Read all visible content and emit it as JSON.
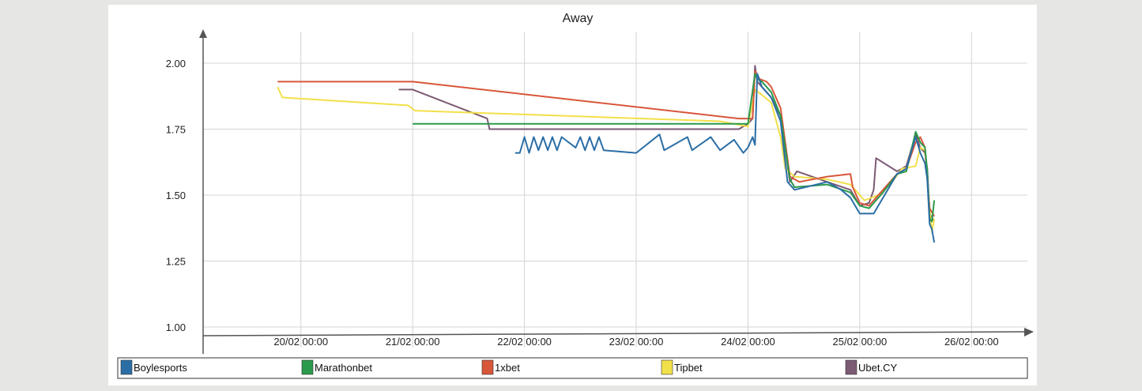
{
  "chart_data": {
    "type": "line",
    "title": "Away",
    "xlabel": "",
    "ylabel": "",
    "ylim": [
      1.0,
      2.05
    ],
    "xlim": [
      "2024-02-19 03:00",
      "2024-02-26 12:00"
    ],
    "grid": true,
    "legend_position": "bottom",
    "y_ticks": [
      "1.00",
      "1.25",
      "1.50",
      "1.75",
      "2.00"
    ],
    "y_tick_values": [
      1.0,
      1.25,
      1.5,
      1.75,
      2.0
    ],
    "x_ticks": [
      "20/02 00:00",
      "21/02 00:00",
      "22/02 00:00",
      "23/02 00:00",
      "24/02 00:00",
      "25/02 00:00",
      "26/02 00:00"
    ],
    "x_tick_values": [
      "2024-02-20 00:00",
      "2024-02-21 00:00",
      "2024-02-22 00:00",
      "2024-02-23 00:00",
      "2024-02-24 00:00",
      "2024-02-25 00:00",
      "2024-02-26 00:00"
    ],
    "series": [
      {
        "name": "Ubet.CY",
        "color": "#7b5a74",
        "points": [
          [
            "2024-02-20 21:00",
            1.9
          ],
          [
            "2024-02-21 00:00",
            1.9
          ],
          [
            "2024-02-21 16:00",
            1.79
          ],
          [
            "2024-02-21 16:30",
            1.75
          ],
          [
            "2024-02-23 22:00",
            1.75
          ],
          [
            "2024-02-24 00:00",
            1.77
          ],
          [
            "2024-02-24 01:00",
            1.79
          ],
          [
            "2024-02-24 01:30",
            1.99
          ],
          [
            "2024-02-24 02:00",
            1.93
          ],
          [
            "2024-02-24 03:30",
            1.9
          ],
          [
            "2024-02-24 05:00",
            1.87
          ],
          [
            "2024-02-24 07:00",
            1.8
          ],
          [
            "2024-02-24 09:00",
            1.55
          ],
          [
            "2024-02-24 10:30",
            1.59
          ],
          [
            "2024-02-24 17:00",
            1.55
          ],
          [
            "2024-02-24 22:00",
            1.52
          ],
          [
            "2024-02-25 00:00",
            1.46
          ],
          [
            "2024-02-25 02:00",
            1.47
          ],
          [
            "2024-02-25 03:00",
            1.52
          ],
          [
            "2024-02-25 03:30",
            1.64
          ],
          [
            "2024-02-25 08:00",
            1.59
          ],
          [
            "2024-02-25 10:00",
            1.61
          ],
          [
            "2024-02-25 12:00",
            1.73
          ],
          [
            "2024-02-25 13:00",
            1.68
          ],
          [
            "2024-02-25 14:00",
            1.66
          ],
          [
            "2024-02-25 14:30",
            1.6
          ],
          [
            "2024-02-25 15:00",
            1.43
          ],
          [
            "2024-02-25 16:00",
            1.4
          ]
        ]
      },
      {
        "name": "Tipbet",
        "color": "#f2e04a",
        "points": [
          [
            "2024-02-19 19:00",
            1.91
          ],
          [
            "2024-02-19 20:00",
            1.87
          ],
          [
            "2024-02-20 23:00",
            1.84
          ],
          [
            "2024-02-21 00:30",
            1.82
          ],
          [
            "2024-02-23 18:00",
            1.78
          ],
          [
            "2024-02-24 00:00",
            1.76
          ],
          [
            "2024-02-24 01:30",
            1.9
          ],
          [
            "2024-02-24 03:00",
            1.88
          ],
          [
            "2024-02-24 05:00",
            1.85
          ],
          [
            "2024-02-24 07:00",
            1.72
          ],
          [
            "2024-02-24 08:00",
            1.6
          ],
          [
            "2024-02-24 10:00",
            1.57
          ],
          [
            "2024-02-24 17:00",
            1.56
          ],
          [
            "2024-02-24 22:00",
            1.54
          ],
          [
            "2024-02-25 01:00",
            1.48
          ],
          [
            "2024-02-25 04:00",
            1.5
          ],
          [
            "2024-02-25 07:00",
            1.55
          ],
          [
            "2024-02-25 09:00",
            1.6
          ],
          [
            "2024-02-25 12:00",
            1.61
          ],
          [
            "2024-02-25 13:00",
            1.68
          ],
          [
            "2024-02-25 14:00",
            1.67
          ],
          [
            "2024-02-25 15:00",
            1.45
          ],
          [
            "2024-02-25 15:30",
            1.36
          ],
          [
            "2024-02-25 16:00",
            1.41
          ]
        ]
      },
      {
        "name": "1xbet",
        "color": "#d8563a",
        "points": [
          [
            "2024-02-19 19:00",
            1.93
          ],
          [
            "2024-02-21 00:00",
            1.93
          ],
          [
            "2024-02-23 22:00",
            1.79
          ],
          [
            "2024-02-24 01:00",
            1.79
          ],
          [
            "2024-02-24 01:30",
            1.97
          ],
          [
            "2024-02-24 02:30",
            1.94
          ],
          [
            "2024-02-24 04:00",
            1.93
          ],
          [
            "2024-02-24 05:00",
            1.91
          ],
          [
            "2024-02-24 07:00",
            1.83
          ],
          [
            "2024-02-24 09:00",
            1.57
          ],
          [
            "2024-02-24 11:00",
            1.55
          ],
          [
            "2024-02-24 17:00",
            1.57
          ],
          [
            "2024-02-24 22:00",
            1.58
          ],
          [
            "2024-02-24 22:30",
            1.53
          ],
          [
            "2024-02-25 00:00",
            1.47
          ],
          [
            "2024-02-25 02:00",
            1.46
          ],
          [
            "2024-02-25 05:00",
            1.52
          ],
          [
            "2024-02-25 08:00",
            1.58
          ],
          [
            "2024-02-25 10:00",
            1.6
          ],
          [
            "2024-02-25 12:00",
            1.7
          ],
          [
            "2024-02-25 13:00",
            1.72
          ],
          [
            "2024-02-25 14:00",
            1.68
          ],
          [
            "2024-02-25 14:30",
            1.56
          ],
          [
            "2024-02-25 15:00",
            1.45
          ],
          [
            "2024-02-25 16:00",
            1.42
          ]
        ]
      },
      {
        "name": "Marathonbet",
        "color": "#2a9a4c",
        "points": [
          [
            "2024-02-21 00:00",
            1.77
          ],
          [
            "2024-02-24 00:00",
            1.77
          ],
          [
            "2024-02-24 01:30",
            1.96
          ],
          [
            "2024-02-24 02:00",
            1.94
          ],
          [
            "2024-02-24 03:00",
            1.93
          ],
          [
            "2024-02-24 05:00",
            1.89
          ],
          [
            "2024-02-24 07:00",
            1.8
          ],
          [
            "2024-02-24 09:00",
            1.56
          ],
          [
            "2024-02-24 10:00",
            1.53
          ],
          [
            "2024-02-24 17:00",
            1.54
          ],
          [
            "2024-02-24 22:00",
            1.51
          ],
          [
            "2024-02-25 00:00",
            1.46
          ],
          [
            "2024-02-25 02:00",
            1.45
          ],
          [
            "2024-02-25 05:00",
            1.51
          ],
          [
            "2024-02-25 08:00",
            1.58
          ],
          [
            "2024-02-25 10:00",
            1.59
          ],
          [
            "2024-02-25 12:00",
            1.74
          ],
          [
            "2024-02-25 13:00",
            1.7
          ],
          [
            "2024-02-25 14:00",
            1.68
          ],
          [
            "2024-02-25 14:30",
            1.59
          ],
          [
            "2024-02-25 15:00",
            1.41
          ],
          [
            "2024-02-25 15:30",
            1.4
          ],
          [
            "2024-02-25 16:00",
            1.48
          ]
        ]
      },
      {
        "name": "Boylesports",
        "color": "#2b6ea6",
        "points": [
          [
            "2024-02-21 22:00",
            1.66
          ],
          [
            "2024-02-21 23:00",
            1.66
          ],
          [
            "2024-02-22 00:00",
            1.72
          ],
          [
            "2024-02-22 01:00",
            1.66
          ],
          [
            "2024-02-22 02:00",
            1.72
          ],
          [
            "2024-02-22 03:00",
            1.67
          ],
          [
            "2024-02-22 04:00",
            1.72
          ],
          [
            "2024-02-22 05:00",
            1.67
          ],
          [
            "2024-02-22 06:00",
            1.72
          ],
          [
            "2024-02-22 07:00",
            1.67
          ],
          [
            "2024-02-22 08:00",
            1.72
          ],
          [
            "2024-02-22 11:00",
            1.68
          ],
          [
            "2024-02-22 12:00",
            1.72
          ],
          [
            "2024-02-22 13:00",
            1.67
          ],
          [
            "2024-02-22 14:00",
            1.72
          ],
          [
            "2024-02-22 15:00",
            1.67
          ],
          [
            "2024-02-22 16:00",
            1.72
          ],
          [
            "2024-02-22 17:00",
            1.67
          ],
          [
            "2024-02-23 00:00",
            1.66
          ],
          [
            "2024-02-23 05:00",
            1.73
          ],
          [
            "2024-02-23 06:00",
            1.67
          ],
          [
            "2024-02-23 11:00",
            1.72
          ],
          [
            "2024-02-23 12:00",
            1.67
          ],
          [
            "2024-02-23 16:00",
            1.72
          ],
          [
            "2024-02-23 18:00",
            1.67
          ],
          [
            "2024-02-23 21:00",
            1.71
          ],
          [
            "2024-02-23 23:00",
            1.66
          ],
          [
            "2024-02-24 00:00",
            1.68
          ],
          [
            "2024-02-24 01:00",
            1.72
          ],
          [
            "2024-02-24 01:30",
            1.69
          ],
          [
            "2024-02-24 02:00",
            1.96
          ],
          [
            "2024-02-24 03:00",
            1.91
          ],
          [
            "2024-02-24 05:00",
            1.87
          ],
          [
            "2024-02-24 07:00",
            1.78
          ],
          [
            "2024-02-24 08:30",
            1.55
          ],
          [
            "2024-02-24 10:00",
            1.52
          ],
          [
            "2024-02-24 17:00",
            1.55
          ],
          [
            "2024-02-24 20:00",
            1.52
          ],
          [
            "2024-02-24 22:00",
            1.49
          ],
          [
            "2024-02-25 00:00",
            1.43
          ],
          [
            "2024-02-25 03:00",
            1.43
          ],
          [
            "2024-02-25 08:00",
            1.58
          ],
          [
            "2024-02-25 10:00",
            1.6
          ],
          [
            "2024-02-25 12:00",
            1.72
          ],
          [
            "2024-02-25 13:00",
            1.66
          ],
          [
            "2024-02-25 14:00",
            1.62
          ],
          [
            "2024-02-25 14:30",
            1.56
          ],
          [
            "2024-02-25 15:00",
            1.39
          ],
          [
            "2024-02-25 15:30",
            1.37
          ],
          [
            "2024-02-25 16:00",
            1.32
          ]
        ]
      }
    ],
    "legend": [
      {
        "name": "Boylesports",
        "color": "#2b6ea6"
      },
      {
        "name": "Marathonbet",
        "color": "#2a9a4c"
      },
      {
        "name": "1xbet",
        "color": "#d8563a"
      },
      {
        "name": "Tipbet",
        "color": "#f2e04a"
      },
      {
        "name": "Ubet.CY",
        "color": "#7b5a74"
      }
    ]
  }
}
